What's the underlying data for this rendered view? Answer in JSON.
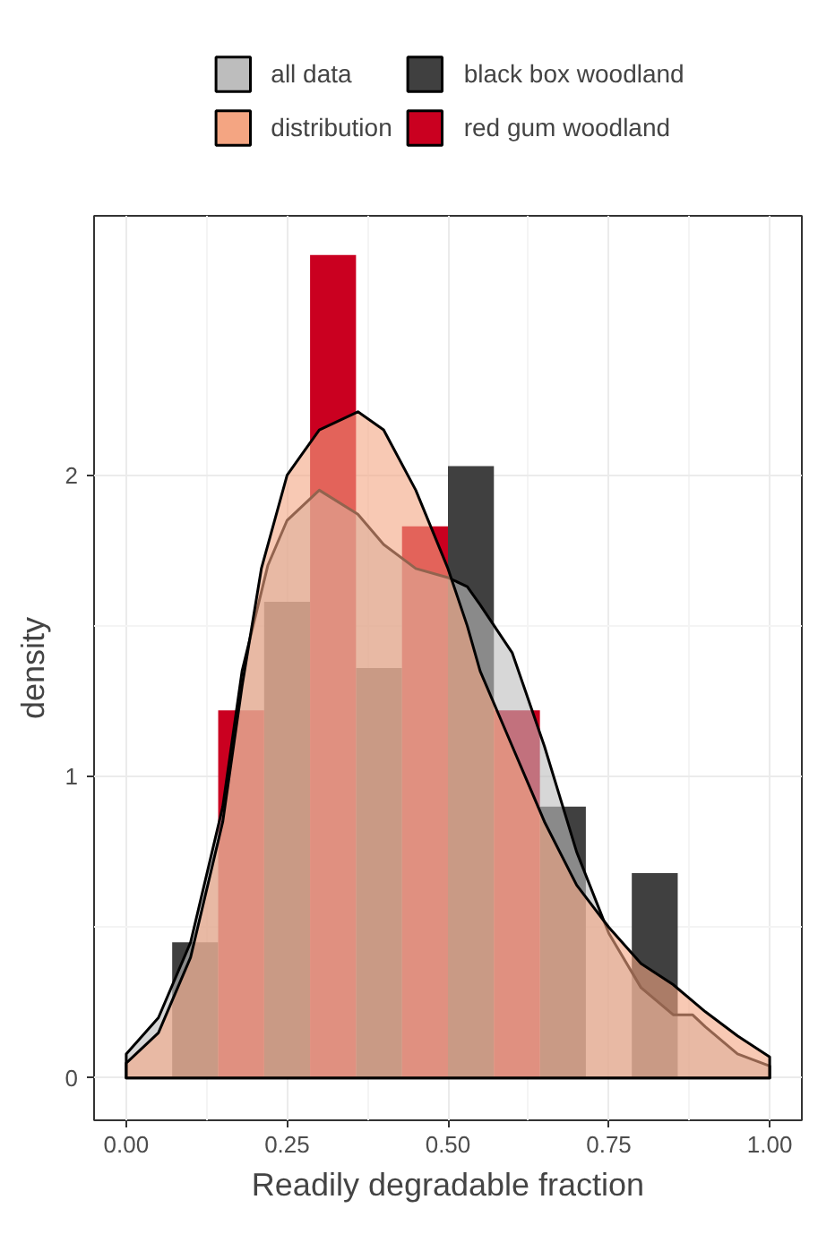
{
  "chart_data": {
    "type": "histogram",
    "xlabel": "Readily degradable fraction",
    "ylabel": "density",
    "xlim": [
      -0.05,
      1.05
    ],
    "ylim": [
      -0.14,
      2.86
    ],
    "xticks": [
      {
        "value": 0,
        "label": "0.00"
      },
      {
        "value": 0.25,
        "label": "0.25"
      },
      {
        "value": 0.5,
        "label": "0.50"
      },
      {
        "value": 0.75,
        "label": "0.75"
      },
      {
        "value": 1,
        "label": "1.00"
      }
    ],
    "yticks": [
      0,
      1,
      2
    ],
    "grid": true,
    "legend": "top",
    "bins": [
      0.0714,
      0.1429,
      0.2143,
      0.2857,
      0.3571,
      0.4286,
      0.5,
      0.5714,
      0.6429,
      0.7143,
      0.7857,
      0.8571
    ],
    "series": [
      {
        "name": "all data",
        "type": "area",
        "color": "#bdbdbd",
        "x": [
          0,
          0.05,
          0.1,
          0.15,
          0.18,
          0.22,
          0.25,
          0.3,
          0.36,
          0.4,
          0.45,
          0.5,
          0.53,
          0.55,
          0.6,
          0.65,
          0.7,
          0.75,
          0.8,
          0.85,
          0.88,
          0.9,
          0.95,
          1.0
        ],
        "values": [
          0.08,
          0.2,
          0.45,
          0.9,
          1.35,
          1.7,
          1.85,
          1.95,
          1.87,
          1.77,
          1.69,
          1.66,
          1.63,
          1.57,
          1.41,
          1.1,
          0.75,
          0.48,
          0.3,
          0.21,
          0.21,
          0.17,
          0.08,
          0.04
        ]
      },
      {
        "name": "distribution",
        "type": "area",
        "color": "#f4a582",
        "x": [
          0,
          0.05,
          0.1,
          0.15,
          0.18,
          0.21,
          0.25,
          0.3,
          0.36,
          0.4,
          0.45,
          0.5,
          0.53,
          0.55,
          0.6,
          0.62,
          0.65,
          0.7,
          0.75,
          0.8,
          0.85,
          0.9,
          0.95,
          1.0
        ],
        "values": [
          0.05,
          0.15,
          0.4,
          0.85,
          1.3,
          1.69,
          2.0,
          2.15,
          2.21,
          2.15,
          1.95,
          1.69,
          1.5,
          1.35,
          1.1,
          1.0,
          0.85,
          0.64,
          0.5,
          0.38,
          0.31,
          0.22,
          0.14,
          0.07
        ]
      },
      {
        "name": "black box woodland",
        "color": "#404040",
        "values": [
          0.45,
          0,
          1.58,
          0,
          1.36,
          0,
          2.03,
          0,
          0.9,
          0,
          0.68
        ]
      },
      {
        "name": "red gum woodland",
        "color": "#ca0020",
        "values": [
          0,
          1.22,
          0,
          2.73,
          0,
          1.83,
          0,
          1.22,
          0,
          0,
          0
        ]
      }
    ]
  }
}
